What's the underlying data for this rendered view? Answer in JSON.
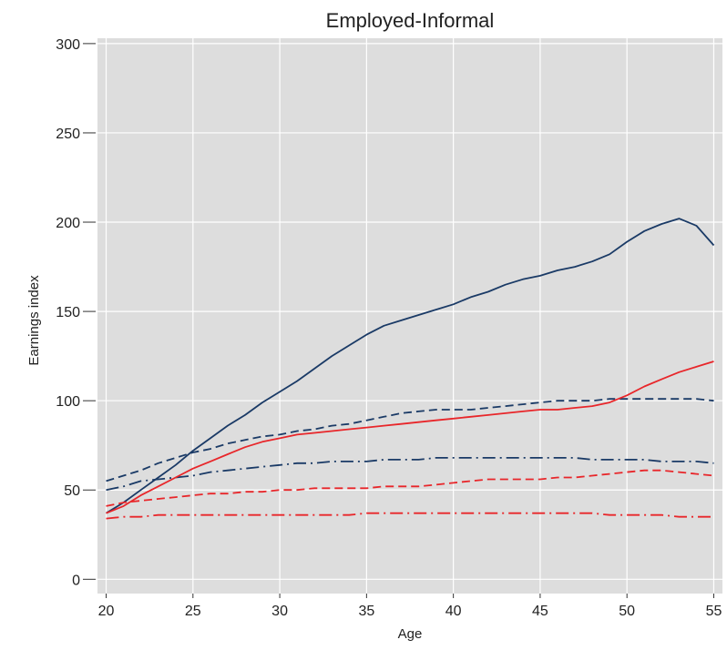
{
  "chart_data": {
    "type": "line",
    "title": "Employed-Informal",
    "xlabel": "Age",
    "ylabel": "Earnings index",
    "xlim": [
      19.5,
      55.5
    ],
    "ylim": [
      -8,
      303
    ],
    "xticks": [
      20,
      25,
      30,
      35,
      40,
      45,
      50,
      55
    ],
    "yticks": [
      0,
      50,
      100,
      150,
      200,
      250,
      300
    ],
    "grid": true,
    "background": "#dddddd",
    "x": [
      20,
      21,
      22,
      23,
      24,
      25,
      26,
      27,
      28,
      29,
      30,
      31,
      32,
      33,
      34,
      35,
      36,
      37,
      38,
      39,
      40,
      41,
      42,
      43,
      44,
      45,
      46,
      47,
      48,
      49,
      50,
      51,
      52,
      53,
      54,
      55
    ],
    "series": [
      {
        "color": "#1a3a66",
        "dash": "solid",
        "values": [
          37,
          43,
          50,
          57,
          64,
          72,
          79,
          86,
          92,
          99,
          105,
          111,
          118,
          125,
          131,
          137,
          142,
          145,
          148,
          151,
          154,
          158,
          161,
          165,
          168,
          170,
          173,
          175,
          178,
          182,
          189,
          195,
          199,
          202,
          198,
          187
        ]
      },
      {
        "color": "#1a3a66",
        "dash": "dashed",
        "values": [
          55,
          58,
          61,
          65,
          68,
          71,
          73,
          76,
          78,
          80,
          81,
          83,
          84,
          86,
          87,
          89,
          91,
          93,
          94,
          95,
          95,
          95,
          96,
          97,
          98,
          99,
          100,
          100,
          100,
          101,
          101,
          101,
          101,
          101,
          101,
          100
        ]
      },
      {
        "color": "#1a3a66",
        "dash": "dashdot",
        "values": [
          50,
          52,
          55,
          56,
          57,
          58,
          60,
          61,
          62,
          63,
          64,
          65,
          65,
          66,
          66,
          66,
          67,
          67,
          67,
          68,
          68,
          68,
          68,
          68,
          68,
          68,
          68,
          68,
          67,
          67,
          67,
          67,
          66,
          66,
          66,
          65
        ]
      },
      {
        "color": "#e8262a",
        "dash": "solid",
        "values": [
          37,
          41,
          47,
          52,
          57,
          62,
          66,
          70,
          74,
          77,
          79,
          81,
          82,
          83,
          84,
          85,
          86,
          87,
          88,
          89,
          90,
          91,
          92,
          93,
          94,
          95,
          95,
          96,
          97,
          99,
          103,
          108,
          112,
          116,
          119,
          122
        ]
      },
      {
        "color": "#e8262a",
        "dash": "dashed",
        "values": [
          41,
          43,
          44,
          45,
          46,
          47,
          48,
          48,
          49,
          49,
          50,
          50,
          51,
          51,
          51,
          51,
          52,
          52,
          52,
          53,
          54,
          55,
          56,
          56,
          56,
          56,
          57,
          57,
          58,
          59,
          60,
          61,
          61,
          60,
          59,
          58
        ]
      },
      {
        "color": "#e8262a",
        "dash": "dashdot",
        "values": [
          34,
          35,
          35,
          36,
          36,
          36,
          36,
          36,
          36,
          36,
          36,
          36,
          36,
          36,
          36,
          37,
          37,
          37,
          37,
          37,
          37,
          37,
          37,
          37,
          37,
          37,
          37,
          37,
          37,
          36,
          36,
          36,
          36,
          35,
          35,
          35
        ]
      }
    ]
  }
}
